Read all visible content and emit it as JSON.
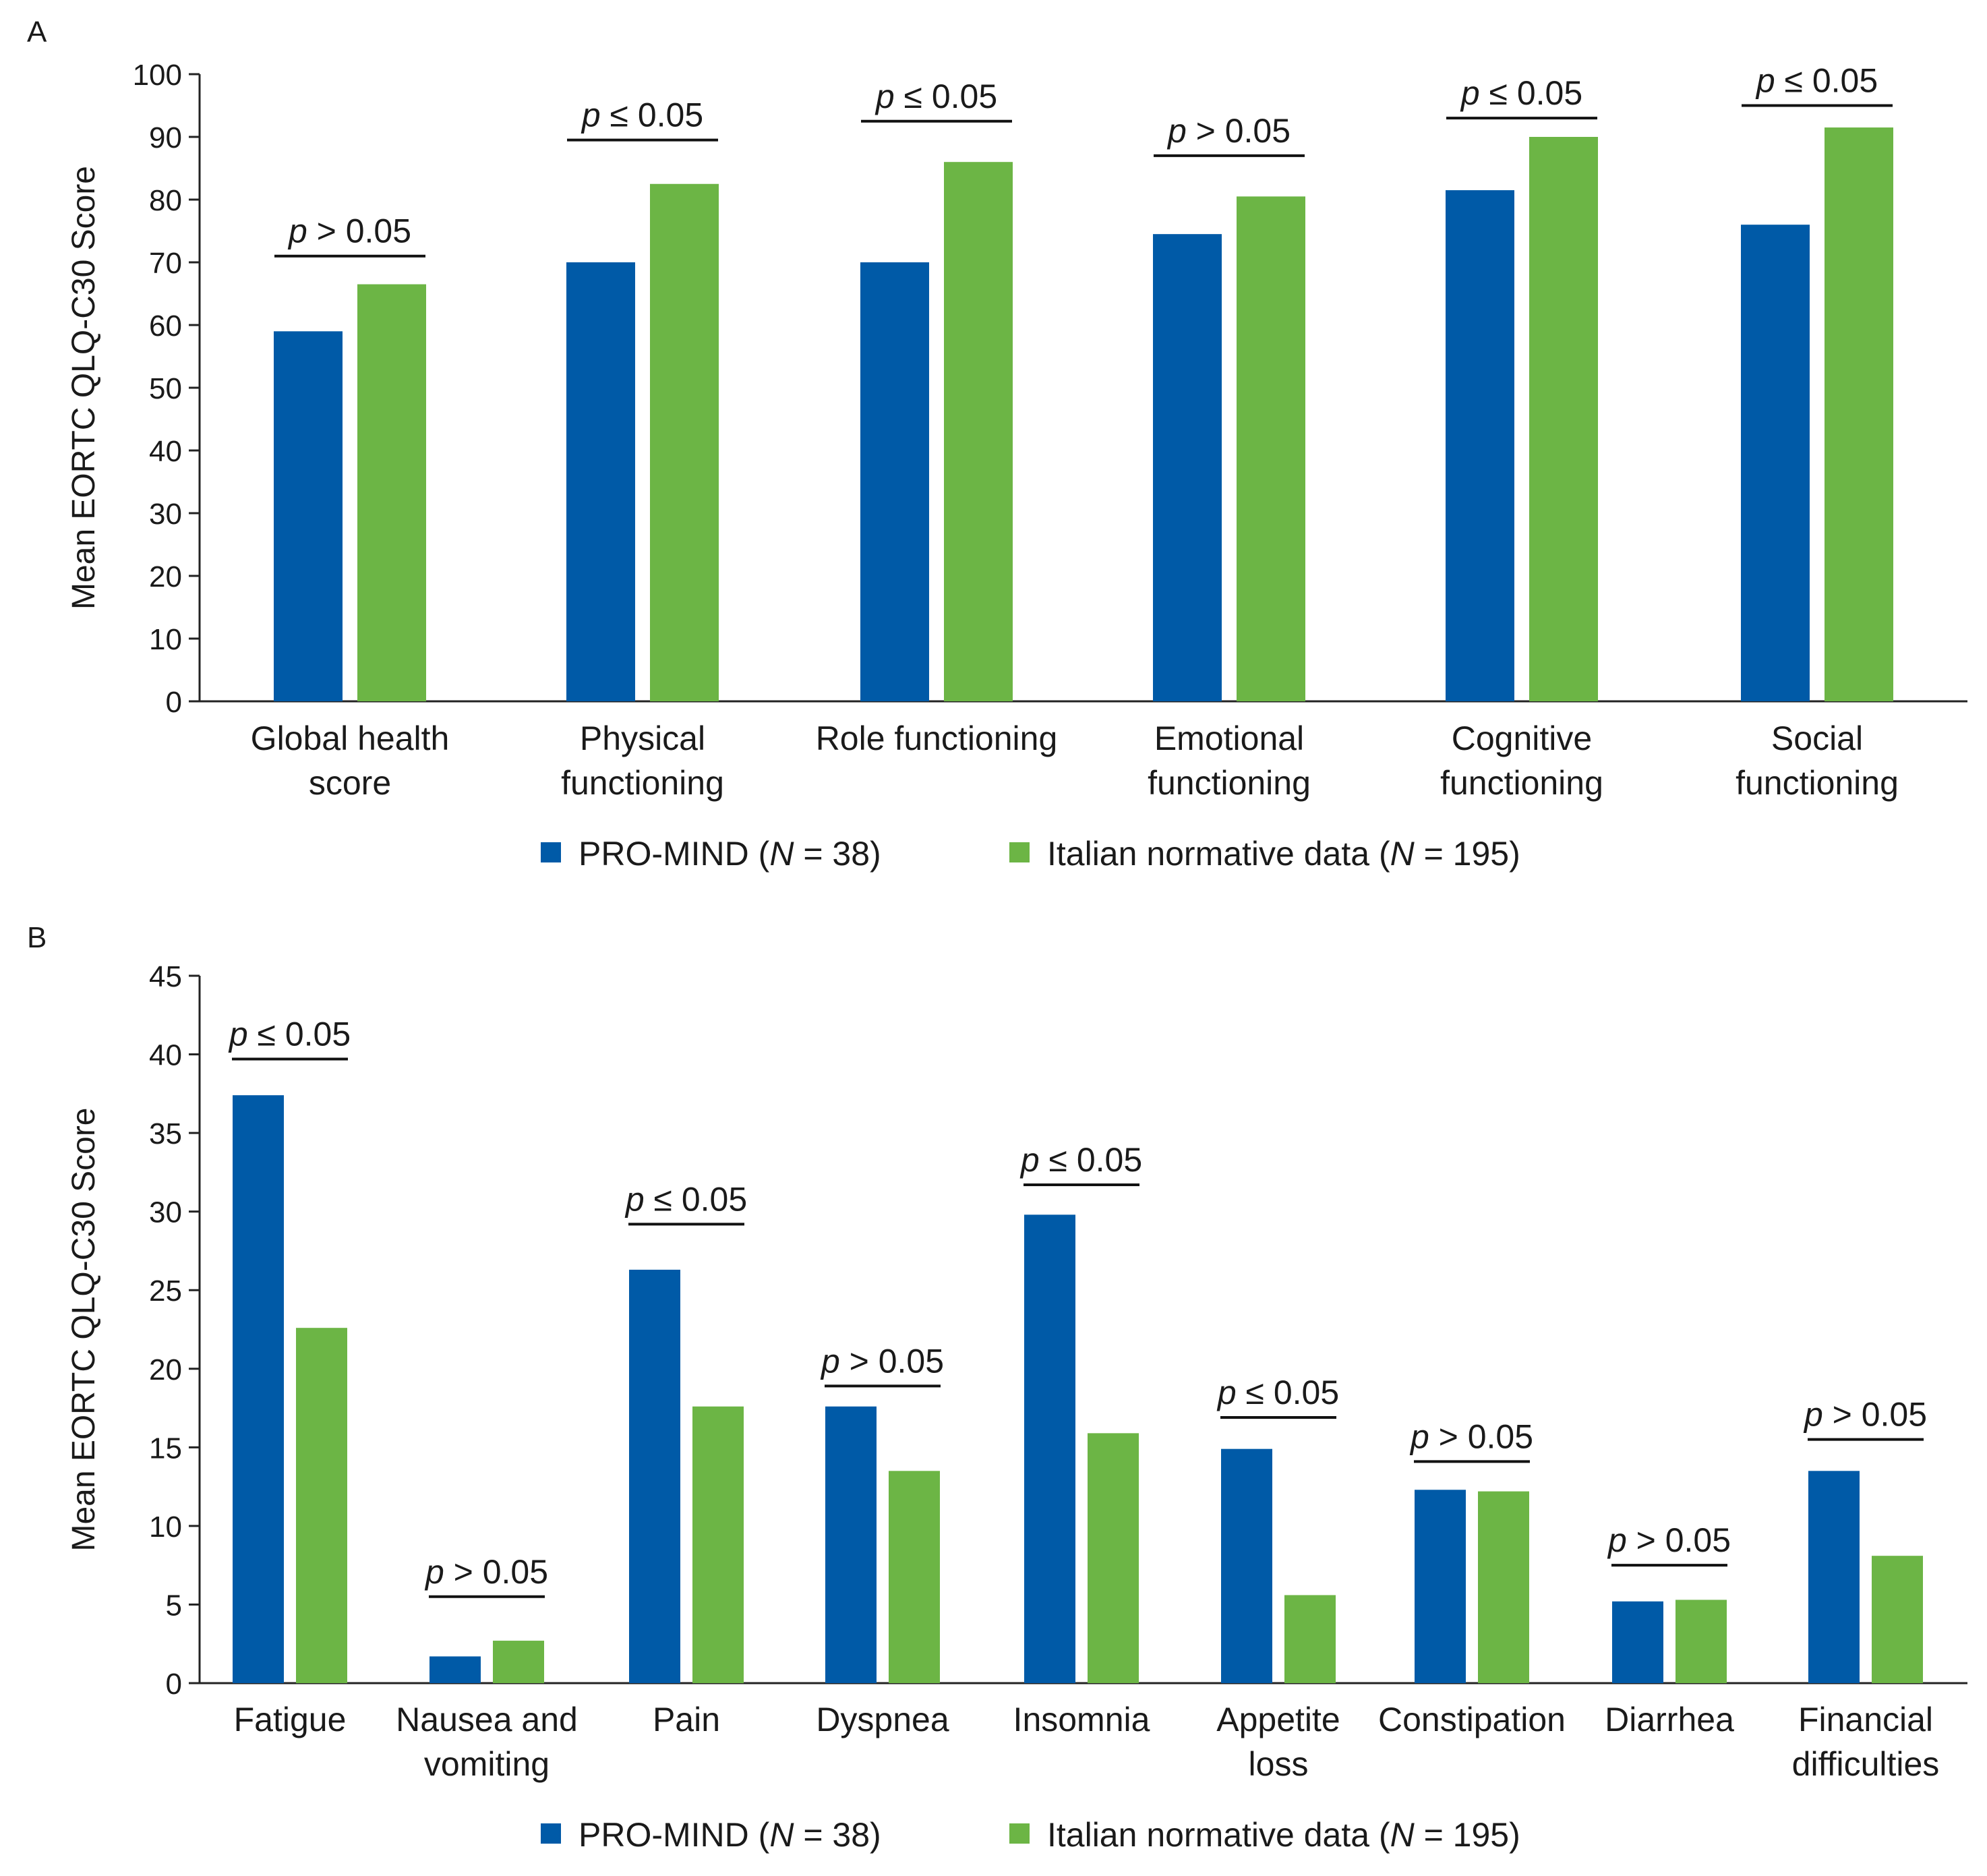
{
  "colors": {
    "series1": "#005aa7",
    "series2": "#6cb545"
  },
  "legend": {
    "items": [
      {
        "name": "PRO-MIND",
        "n_label": "N",
        "n_rest": " = 38)",
        "color": "#005aa7"
      },
      {
        "name": "Italian normative data",
        "n_label": "N",
        "n_rest": " = 195)",
        "color": "#6cb545"
      }
    ]
  },
  "chart_data": [
    {
      "panel": "A",
      "type": "bar",
      "ylabel": "Mean EORTC QLQ-C30 Score",
      "ylim": [
        0,
        100
      ],
      "yticks": [
        0,
        10,
        20,
        30,
        40,
        50,
        60,
        70,
        80,
        90,
        100
      ],
      "categories": [
        [
          "Global health",
          "score"
        ],
        [
          "Physical",
          "functioning"
        ],
        [
          "Role functioning"
        ],
        [
          "Emotional",
          "functioning"
        ],
        [
          "Cognitive",
          "functioning"
        ],
        [
          "Social",
          "functioning"
        ]
      ],
      "series": [
        {
          "name": "PRO-MIND (N = 38)",
          "values": [
            59,
            70,
            70,
            74.5,
            81.5,
            76
          ]
        },
        {
          "name": "Italian normative data (N = 195)",
          "values": [
            66.5,
            82.5,
            86,
            80.5,
            90,
            91.5
          ]
        }
      ],
      "pvalues": [
        "p > 0.05",
        "p ≤ 0.05",
        "p ≤ 0.05",
        "p > 0.05",
        "p ≤ 0.05",
        "p ≤ 0.05"
      ],
      "pvalue_parts": [
        {
          "p": "p",
          "rest": " > 0.05"
        },
        {
          "p": "p",
          "rest": " ≤ 0.05"
        },
        {
          "p": "p",
          "rest": " ≤ 0.05"
        },
        {
          "p": "p",
          "rest": " > 0.05"
        },
        {
          "p": "p",
          "rest": " ≤ 0.05"
        },
        {
          "p": "p",
          "rest": " ≤ 0.05"
        }
      ],
      "bracket_level": [
        71,
        89.5,
        92.5,
        87,
        93,
        95
      ]
    },
    {
      "panel": "B",
      "type": "bar",
      "ylabel": "Mean EORTC QLQ-C30 Score",
      "ylim": [
        0,
        45
      ],
      "yticks": [
        0,
        5,
        10,
        15,
        20,
        25,
        30,
        35,
        40,
        45
      ],
      "categories": [
        [
          "Fatigue"
        ],
        [
          "Nausea and",
          "vomiting"
        ],
        [
          "Pain"
        ],
        [
          "Dyspnea"
        ],
        [
          "Insomnia"
        ],
        [
          "Appetite",
          "loss"
        ],
        [
          "Constipation"
        ],
        [
          "Diarrhea"
        ],
        [
          "Financial",
          "difficulties"
        ]
      ],
      "series": [
        {
          "name": "PRO-MIND (N = 38)",
          "values": [
            37.4,
            1.7,
            26.3,
            17.6,
            29.8,
            14.9,
            12.3,
            5.2,
            13.5
          ]
        },
        {
          "name": "Italian normative data (N = 195)",
          "values": [
            22.6,
            2.7,
            17.6,
            13.5,
            15.9,
            5.6,
            12.2,
            5.3,
            8.1
          ]
        }
      ],
      "pvalues": [
        "p ≤ 0.05",
        "p > 0.05",
        "p ≤ 0.05",
        "p > 0.05",
        "p ≤ 0.05",
        "p ≤ 0.05",
        "p > 0.05",
        "p > 0.05",
        "p > 0.05"
      ],
      "pvalue_parts": [
        {
          "p": "p",
          "rest": " ≤ 0.05"
        },
        {
          "p": "p",
          "rest": " > 0.05"
        },
        {
          "p": "p",
          "rest": " ≤ 0.05"
        },
        {
          "p": "p",
          "rest": " > 0.05"
        },
        {
          "p": "p",
          "rest": " ≤ 0.05"
        },
        {
          "p": "p",
          "rest": " ≤ 0.05"
        },
        {
          "p": "p",
          "rest": " > 0.05"
        },
        {
          "p": "p",
          "rest": " > 0.05"
        },
        {
          "p": "p",
          "rest": " > 0.05"
        }
      ],
      "bracket_level": [
        39.7,
        5.5,
        29.2,
        18.9,
        31.7,
        16.9,
        14.1,
        7.5,
        15.5
      ]
    }
  ]
}
